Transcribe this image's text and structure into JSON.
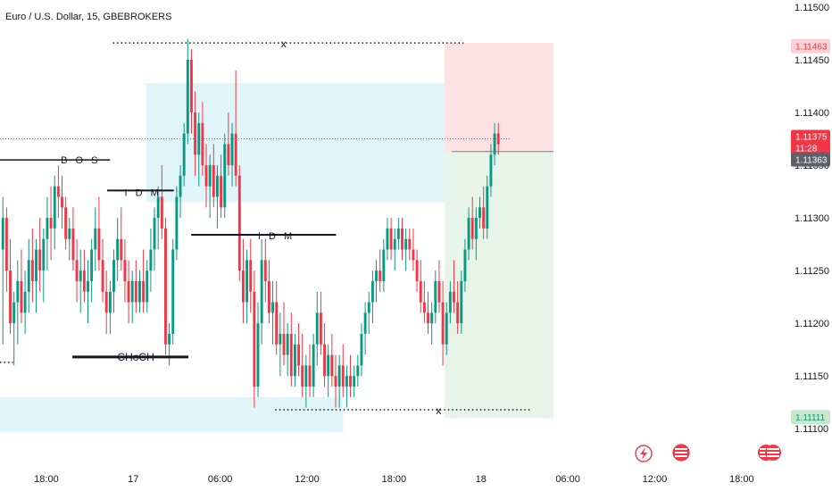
{
  "chart_data": {
    "type": "candlestick",
    "title": "Euro / U.S. Dollar, 15, GBEBROKERS",
    "symbol": "EURUSD",
    "interval": "15",
    "broker": "GBEBROKERS",
    "ylim": [
      1.1109,
      1.115
    ],
    "y_ticks": [
      "1.11500",
      "1.11450",
      "1.11400",
      "1.11350",
      "1.11300",
      "1.11250",
      "1.11200",
      "1.11150",
      "1.11100"
    ],
    "y_tick_values": [
      1.115,
      1.1145,
      1.114,
      1.1135,
      1.113,
      1.1125,
      1.112,
      1.1115,
      1.111
    ],
    "x_ticks": [
      "18:00",
      "17",
      "06:00",
      "12:00",
      "18:00",
      "18",
      "06:00",
      "12:00",
      "18:00"
    ],
    "x_tick_hours": [
      0,
      6,
      12,
      18,
      24,
      30,
      36,
      42,
      48
    ],
    "x_range_hours": [
      -3.2,
      50.6
    ],
    "last_price": "1.11375",
    "countdown": "11:28",
    "current_price_tag": "1.11363",
    "target_price_tag": "1.11463",
    "stop_price_tag": "1.11111",
    "colors": {
      "up": "#089981",
      "down": "#f23645",
      "target_zone": "#fde2e4",
      "stop_zone": "#e6f4ea",
      "supply_zone": "#e0f5fa",
      "current_line": "#787b86"
    },
    "annotations": {
      "bos": "B O S",
      "idm_top": "I D M",
      "idm_mid": "I D M",
      "choch": "CHoCH",
      "x_top": "x",
      "x_bottom": "x"
    },
    "levels": {
      "bos": 1.11355,
      "idm_top": 1.11326,
      "idm_mid": 1.11284,
      "choch": 1.11168,
      "x_top": 1.11466,
      "x_bottom": 1.11118,
      "left_dotted": 1.11163
    },
    "zones": {
      "supply": [
        1.11315,
        1.11428,
        6.9,
        27.5
      ],
      "demand_left": [
        1.11097,
        1.1113,
        -3.2,
        20.5
      ],
      "target": [
        1.11363,
        1.11466,
        27.5,
        35.0
      ],
      "stop": [
        1.1111,
        1.11363,
        27.5,
        35.0
      ]
    },
    "candles": [
      [
        1.1127,
        1.1132,
        1.1118,
        1.113
      ],
      [
        1.113,
        1.1131,
        1.1123,
        1.1125
      ],
      [
        1.1125,
        1.1128,
        1.1119,
        1.112
      ],
      [
        1.112,
        1.1123,
        1.1116,
        1.1122
      ],
      [
        1.1122,
        1.1126,
        1.1118,
        1.1124
      ],
      [
        1.1124,
        1.1127,
        1.112,
        1.1121
      ],
      [
        1.1121,
        1.1125,
        1.1119,
        1.1123
      ],
      [
        1.1123,
        1.1128,
        1.1121,
        1.1126
      ],
      [
        1.1126,
        1.1129,
        1.1122,
        1.1124
      ],
      [
        1.1124,
        1.1128,
        1.1121,
        1.1127
      ],
      [
        1.1127,
        1.113,
        1.1123,
        1.1125
      ],
      [
        1.1125,
        1.1129,
        1.1122,
        1.1128
      ],
      [
        1.1128,
        1.1132,
        1.1125,
        1.113
      ],
      [
        1.113,
        1.1133,
        1.1126,
        1.1129
      ],
      [
        1.1129,
        1.1134,
        1.1127,
        1.1133
      ],
      [
        1.1133,
        1.1135,
        1.113,
        1.1132
      ],
      [
        1.1132,
        1.1134,
        1.1129,
        1.1131
      ],
      [
        1.1131,
        1.1132,
        1.1127,
        1.1128
      ],
      [
        1.1128,
        1.113,
        1.1126,
        1.1129
      ],
      [
        1.1129,
        1.1131,
        1.1125,
        1.1126
      ],
      [
        1.1126,
        1.1128,
        1.1122,
        1.1124
      ],
      [
        1.1124,
        1.1127,
        1.1121,
        1.1125
      ],
      [
        1.1125,
        1.1127,
        1.1122,
        1.1123
      ],
      [
        1.1123,
        1.1126,
        1.112,
        1.1124
      ],
      [
        1.1124,
        1.1128,
        1.1122,
        1.1127
      ],
      [
        1.1127,
        1.1131,
        1.1125,
        1.1129
      ],
      [
        1.1129,
        1.1132,
        1.1125,
        1.1126
      ],
      [
        1.1126,
        1.1128,
        1.1122,
        1.1123
      ],
      [
        1.1123,
        1.1125,
        1.1119,
        1.1121
      ],
      [
        1.1121,
        1.1124,
        1.1119,
        1.1123
      ],
      [
        1.1123,
        1.1127,
        1.1121,
        1.1126
      ],
      [
        1.1126,
        1.113,
        1.1124,
        1.1128
      ],
      [
        1.1128,
        1.1131,
        1.1125,
        1.1126
      ],
      [
        1.1126,
        1.1128,
        1.1122,
        1.1124
      ],
      [
        1.1124,
        1.1126,
        1.112,
        1.1122
      ],
      [
        1.1122,
        1.1125,
        1.112,
        1.1124
      ],
      [
        1.1124,
        1.1126,
        1.1121,
        1.1122
      ],
      [
        1.1122,
        1.1125,
        1.1121,
        1.1124
      ],
      [
        1.1124,
        1.1127,
        1.1121,
        1.1122
      ],
      [
        1.1122,
        1.1126,
        1.1121,
        1.1125
      ],
      [
        1.1125,
        1.1129,
        1.1123,
        1.1127
      ],
      [
        1.1127,
        1.1131,
        1.1125,
        1.113
      ],
      [
        1.113,
        1.1133,
        1.1127,
        1.1132
      ],
      [
        1.1132,
        1.1135,
        1.1128,
        1.1129
      ],
      [
        1.1129,
        1.113,
        1.1117,
        1.1118
      ],
      [
        1.1118,
        1.112,
        1.1116,
        1.1119
      ],
      [
        1.1119,
        1.1128,
        1.1118,
        1.1127
      ],
      [
        1.1127,
        1.1133,
        1.1126,
        1.1132
      ],
      [
        1.1132,
        1.1135,
        1.113,
        1.1134
      ],
      [
        1.1134,
        1.1139,
        1.1133,
        1.1138
      ],
      [
        1.1138,
        1.1147,
        1.1137,
        1.1145
      ],
      [
        1.1145,
        1.1146,
        1.1138,
        1.114
      ],
      [
        1.114,
        1.1142,
        1.1134,
        1.1136
      ],
      [
        1.1136,
        1.114,
        1.1133,
        1.1139
      ],
      [
        1.1139,
        1.1141,
        1.1134,
        1.1135
      ],
      [
        1.1135,
        1.1137,
        1.1131,
        1.1133
      ],
      [
        1.1133,
        1.1136,
        1.113,
        1.1135
      ],
      [
        1.1135,
        1.1137,
        1.1131,
        1.1132
      ],
      [
        1.1132,
        1.1135,
        1.1129,
        1.1134
      ],
      [
        1.1134,
        1.1136,
        1.113,
        1.1131
      ],
      [
        1.1131,
        1.1138,
        1.113,
        1.1137
      ],
      [
        1.1137,
        1.114,
        1.1134,
        1.1135
      ],
      [
        1.1135,
        1.1139,
        1.1133,
        1.1138
      ],
      [
        1.1138,
        1.1144,
        1.1133,
        1.1134
      ],
      [
        1.1134,
        1.1135,
        1.1124,
        1.1125
      ],
      [
        1.1125,
        1.1128,
        1.112,
        1.1122
      ],
      [
        1.1122,
        1.1127,
        1.112,
        1.1126
      ],
      [
        1.1126,
        1.1128,
        1.1121,
        1.1123
      ],
      [
        1.1123,
        1.1125,
        1.1112,
        1.1114
      ],
      [
        1.1114,
        1.1122,
        1.1113,
        1.112
      ],
      [
        1.112,
        1.1128,
        1.1118,
        1.1126
      ],
      [
        1.1126,
        1.1128,
        1.1122,
        1.1124
      ],
      [
        1.1124,
        1.1126,
        1.112,
        1.1121
      ],
      [
        1.1121,
        1.1124,
        1.1118,
        1.1122
      ],
      [
        1.1122,
        1.1124,
        1.1117,
        1.1118
      ],
      [
        1.1118,
        1.1121,
        1.1115,
        1.1119
      ],
      [
        1.1119,
        1.1122,
        1.1116,
        1.1117
      ],
      [
        1.1117,
        1.112,
        1.1115,
        1.1119
      ],
      [
        1.1119,
        1.1121,
        1.1114,
        1.1115
      ],
      [
        1.1115,
        1.1119,
        1.1114,
        1.1118
      ],
      [
        1.1118,
        1.112,
        1.1115,
        1.1116
      ],
      [
        1.1116,
        1.1119,
        1.1113,
        1.1114
      ],
      [
        1.1114,
        1.1117,
        1.1112,
        1.1116
      ],
      [
        1.1116,
        1.1118,
        1.1113,
        1.1114
      ],
      [
        1.1114,
        1.1119,
        1.1113,
        1.1118
      ],
      [
        1.1118,
        1.1123,
        1.1116,
        1.1121
      ],
      [
        1.1121,
        1.1123,
        1.1117,
        1.1118
      ],
      [
        1.1118,
        1.112,
        1.1114,
        1.1115
      ],
      [
        1.1115,
        1.1118,
        1.1113,
        1.1117
      ],
      [
        1.1117,
        1.1119,
        1.1114,
        1.1115
      ],
      [
        1.1115,
        1.1117,
        1.1112,
        1.1114
      ],
      [
        1.1114,
        1.1117,
        1.1112,
        1.1116
      ],
      [
        1.1116,
        1.1118,
        1.1113,
        1.1114
      ],
      [
        1.1114,
        1.1116,
        1.1112,
        1.1115
      ],
      [
        1.1115,
        1.1117,
        1.1113,
        1.1114
      ],
      [
        1.1114,
        1.1116,
        1.1113,
        1.1115
      ],
      [
        1.1115,
        1.1117,
        1.1114,
        1.1116
      ],
      [
        1.1116,
        1.112,
        1.1115,
        1.1119
      ],
      [
        1.1119,
        1.1122,
        1.1117,
        1.1121
      ],
      [
        1.1121,
        1.1123,
        1.1119,
        1.1122
      ],
      [
        1.1122,
        1.1125,
        1.112,
        1.1124
      ],
      [
        1.1124,
        1.1126,
        1.1122,
        1.1125
      ],
      [
        1.1125,
        1.1127,
        1.1123,
        1.1124
      ],
      [
        1.1124,
        1.1128,
        1.1123,
        1.1127
      ],
      [
        1.1127,
        1.113,
        1.1126,
        1.1129
      ],
      [
        1.1129,
        1.113,
        1.1126,
        1.1127
      ],
      [
        1.1127,
        1.1129,
        1.1125,
        1.1128
      ],
      [
        1.1128,
        1.113,
        1.1127,
        1.1129
      ],
      [
        1.1129,
        1.113,
        1.1126,
        1.1127
      ],
      [
        1.1127,
        1.1129,
        1.1125,
        1.1128
      ],
      [
        1.1128,
        1.1129,
        1.1126,
        1.1127
      ],
      [
        1.1127,
        1.1129,
        1.1125,
        1.1126
      ],
      [
        1.1126,
        1.1127,
        1.1123,
        1.1124
      ],
      [
        1.1124,
        1.1126,
        1.1121,
        1.1122
      ],
      [
        1.1122,
        1.1124,
        1.112,
        1.1121
      ],
      [
        1.1121,
        1.1123,
        1.1119,
        1.112
      ],
      [
        1.112,
        1.1122,
        1.1118,
        1.1121
      ],
      [
        1.1121,
        1.1125,
        1.112,
        1.1124
      ],
      [
        1.1124,
        1.1126,
        1.1121,
        1.1122
      ],
      [
        1.1122,
        1.1124,
        1.1116,
        1.1118
      ],
      [
        1.1118,
        1.1122,
        1.1117,
        1.1121
      ],
      [
        1.1121,
        1.1124,
        1.112,
        1.1123
      ],
      [
        1.1123,
        1.1126,
        1.1121,
        1.1122
      ],
      [
        1.1122,
        1.1124,
        1.1119,
        1.112
      ],
      [
        1.112,
        1.1125,
        1.1119,
        1.1124
      ],
      [
        1.1124,
        1.1128,
        1.1123,
        1.1127
      ],
      [
        1.1127,
        1.1131,
        1.1126,
        1.113
      ],
      [
        1.113,
        1.1132,
        1.1127,
        1.1128
      ],
      [
        1.1128,
        1.1131,
        1.1126,
        1.113
      ],
      [
        1.113,
        1.1132,
        1.1129,
        1.1131
      ],
      [
        1.1131,
        1.1133,
        1.1128,
        1.1129
      ],
      [
        1.1129,
        1.1134,
        1.1128,
        1.1133
      ],
      [
        1.1133,
        1.1137,
        1.1132,
        1.1136
      ],
      [
        1.1136,
        1.1139,
        1.1135,
        1.1138
      ],
      [
        1.1138,
        1.1139,
        1.1136,
        1.1137
      ]
    ]
  }
}
